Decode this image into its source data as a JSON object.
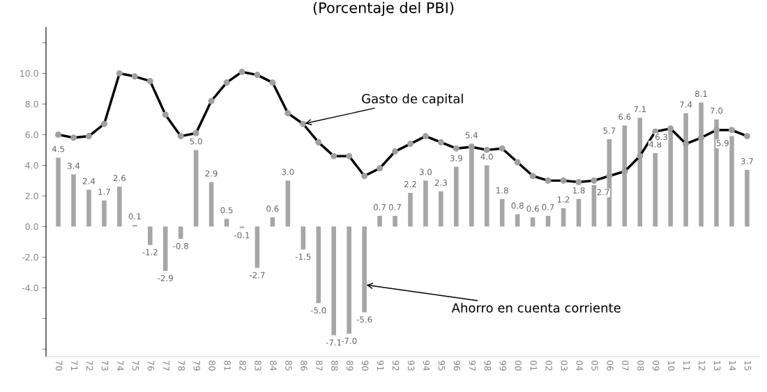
{
  "chart_data": {
    "type": "bar",
    "title": "(Porcentaje del PBI)",
    "categories": [
      "70",
      "71",
      "72",
      "73",
      "74",
      "75",
      "76",
      "77",
      "78",
      "79",
      "80",
      "81",
      "82",
      "83",
      "84",
      "85",
      "86",
      "87",
      "88",
      "89",
      "90",
      "91",
      "92",
      "93",
      "94",
      "95",
      "96",
      "97",
      "98",
      "99",
      "00",
      "01",
      "02",
      "03",
      "04",
      "05",
      "06",
      "07",
      "08",
      "09",
      "10",
      "11",
      "12",
      "13",
      "14",
      "15"
    ],
    "series": [
      {
        "type": "bar",
        "color": "#a6a6a6",
        "values": [
          4.5,
          3.4,
          2.4,
          1.7,
          2.6,
          0.1,
          -1.2,
          -2.9,
          -0.8,
          5.0,
          2.9,
          0.5,
          -0.1,
          -2.7,
          0.6,
          3.0,
          -1.5,
          -5.0,
          -7.1,
          -7.0,
          -5.6,
          0.7,
          0.7,
          2.2,
          3.0,
          2.3,
          3.9,
          5.4,
          4.0,
          1.8,
          0.8,
          0.6,
          0.7,
          1.2,
          1.8,
          2.7,
          5.7,
          6.6,
          7.1,
          4.8,
          6.3,
          7.4,
          8.1,
          7.0,
          5.9,
          3.7
        ],
        "value_labels": [
          "4.5",
          "3.4",
          "2.4",
          "1.7",
          "2.6",
          "0.1",
          "-1.2",
          "-2.9",
          "-0.8",
          "5.0",
          "2.9",
          "0.5",
          "-0.1",
          "-2.7",
          "0.6",
          "3.0",
          "-1.5",
          "-5.0",
          "-7.1",
          "-7.0",
          "-5.6",
          "0.7",
          "0.7",
          "2.2",
          "3.0",
          "2.3",
          "3.9",
          "5.4",
          "4.0",
          "1.8",
          "0.8",
          "0.6",
          "0.7",
          "1.2",
          "1.8",
          "2.7",
          "5.7",
          "6.6",
          "7.1",
          "4.8",
          "6.3",
          "7.4",
          "8.1",
          "7.0",
          "5.9",
          "3.7"
        ]
      },
      {
        "type": "line",
        "color": "#000000",
        "marker": "circle",
        "line_style": "solid",
        "values": [
          6.0,
          5.8,
          5.9,
          6.7,
          10.0,
          9.8,
          9.5,
          7.3,
          5.9,
          6.1,
          8.2,
          9.4,
          10.1,
          9.9,
          9.4,
          7.4,
          6.7,
          5.5,
          4.6,
          4.6,
          3.3,
          3.8,
          4.9,
          5.4,
          5.9,
          5.5,
          5.1,
          5.2,
          5.0,
          5.1,
          4.2,
          3.3,
          3.0,
          3.0,
          2.9,
          3.0,
          3.3,
          3.6,
          4.6,
          6.2,
          6.4,
          5.4,
          5.8,
          6.3,
          6.3,
          5.9
        ]
      }
    ],
    "ylim": [
      -8.5,
      13
    ],
    "yticks": [
      {
        "value": -8,
        "label": null
      },
      {
        "value": -6,
        "label": null
      },
      {
        "value": -4,
        "label": "-4.0"
      },
      {
        "value": -2,
        "label": "-2.0"
      },
      {
        "value": 0,
        "label": "0.0"
      },
      {
        "value": 2,
        "label": "2.0"
      },
      {
        "value": 4,
        "label": "4.0"
      },
      {
        "value": 6,
        "label": "6.0"
      },
      {
        "value": 8,
        "label": "8.0"
      },
      {
        "value": 10,
        "label": "10.0"
      },
      {
        "value": 12,
        "label": null
      }
    ],
    "grid": false,
    "legend": false,
    "annotations": [
      {
        "text": "Gasto de capital",
        "x": "86",
        "y": 6.7
      },
      {
        "text": "Ahorro en cuenta corriente",
        "x": "90",
        "y": -3.8
      }
    ]
  }
}
